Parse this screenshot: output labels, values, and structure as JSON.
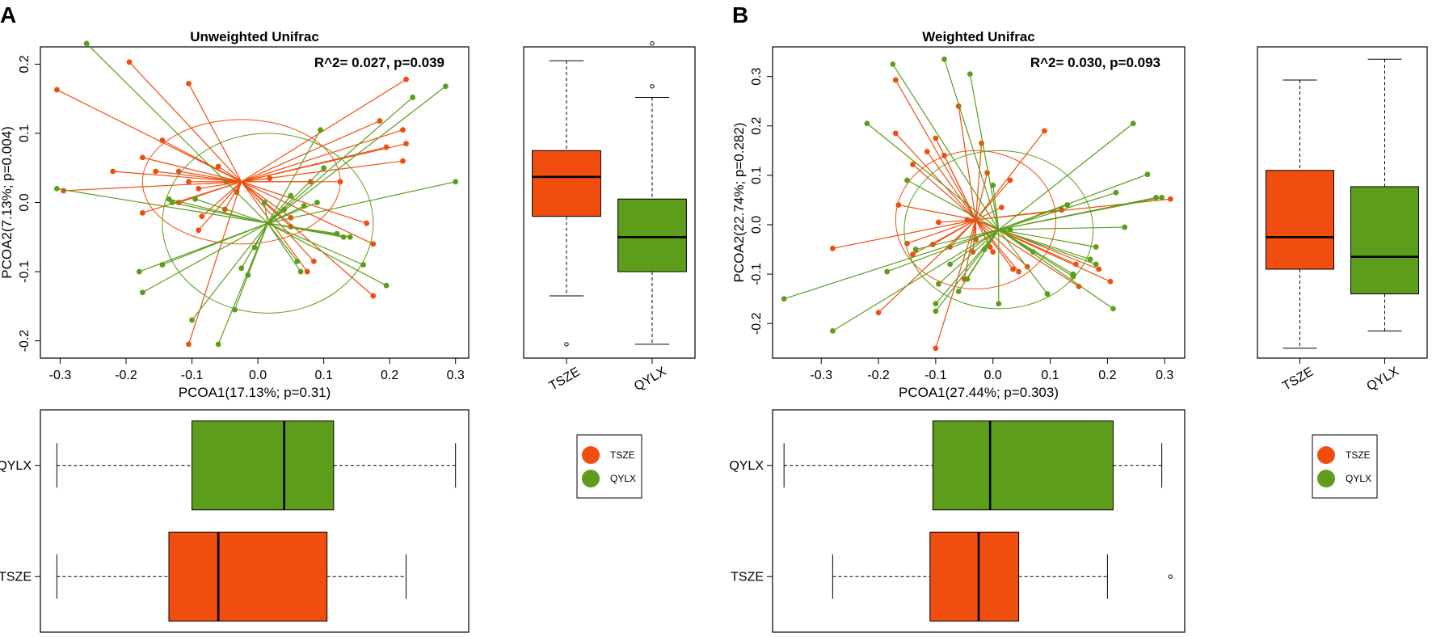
{
  "colors": {
    "TSZE": "#f04e0f",
    "QYLX": "#5c9e1b"
  },
  "panel_labels": [
    "A",
    "B"
  ],
  "chart_data": [
    {
      "type": "scatter",
      "panel": "A",
      "title": "Unweighted Unifrac",
      "stat": "R^2= 0.027, p=0.039",
      "xlabel": "PCOA1(17.13%; p=0.31)",
      "ylabel": "PCOA2(7.13%; p=0.004)",
      "xlim": [
        -0.33,
        0.32
      ],
      "ylim": [
        -0.225,
        0.225
      ],
      "xticks": [
        "-0.3",
        "-0.2",
        "-0.1",
        "0.0",
        "0.1",
        "0.2",
        "0.3"
      ],
      "yticks": [
        "-0.2",
        "-0.1",
        "0.0",
        "0.1",
        "0.2"
      ],
      "groups": [
        {
          "name": "TSZE",
          "centroid": [
            -0.025,
            0.03
          ],
          "ellipse": {
            "rx": 0.15,
            "ry": 0.09,
            "angle": 0
          },
          "points": [
            [
              -0.305,
              0.163
            ],
            [
              -0.295,
              0.017
            ],
            [
              -0.195,
              0.203
            ],
            [
              -0.22,
              0.045
            ],
            [
              -0.155,
              0.045
            ],
            [
              -0.175,
              0.065
            ],
            [
              -0.145,
              0.09
            ],
            [
              -0.105,
              0.172
            ],
            [
              -0.12,
              0.045
            ],
            [
              -0.105,
              0.03
            ],
            [
              -0.09,
              0.02
            ],
            [
              -0.085,
              -0.02
            ],
            [
              -0.09,
              -0.04
            ],
            [
              -0.12,
              0.0
            ],
            [
              -0.175,
              -0.015
            ],
            [
              -0.06,
              0.052
            ],
            [
              -0.048,
              0.03
            ],
            [
              -0.05,
              -0.01
            ],
            [
              -0.032,
              0.015
            ],
            [
              0.018,
              0.035
            ],
            [
              0.05,
              -0.022
            ],
            [
              0.05,
              -0.035
            ],
            [
              0.085,
              -0.085
            ],
            [
              0.075,
              -0.1
            ],
            [
              0.08,
              0.03
            ],
            [
              0.125,
              0.03
            ],
            [
              0.165,
              -0.03
            ],
            [
              0.175,
              -0.06
            ],
            [
              0.225,
              0.178
            ],
            [
              0.22,
              0.105
            ],
            [
              0.225,
              0.085
            ],
            [
              0.22,
              0.06
            ],
            [
              0.185,
              0.118
            ],
            [
              0.195,
              0.08
            ],
            [
              0.175,
              -0.135
            ],
            [
              -0.105,
              -0.205
            ]
          ]
        },
        {
          "name": "QYLX",
          "centroid": [
            0.015,
            -0.03
          ],
          "ellipse": {
            "rx": 0.16,
            "ry": 0.13,
            "angle": 0
          },
          "points": [
            [
              -0.26,
              0.23
            ],
            [
              -0.305,
              0.02
            ],
            [
              -0.175,
              -0.13
            ],
            [
              -0.18,
              -0.1
            ],
            [
              -0.145,
              -0.09
            ],
            [
              -0.135,
              0.005
            ],
            [
              -0.13,
              0.0
            ],
            [
              -0.1,
              -0.17
            ],
            [
              -0.06,
              -0.205
            ],
            [
              -0.035,
              -0.155
            ],
            [
              -0.025,
              -0.095
            ],
            [
              -0.015,
              -0.105
            ],
            [
              -0.005,
              -0.065
            ],
            [
              0.01,
              0.0
            ],
            [
              0.04,
              -0.01
            ],
            [
              0.06,
              -0.085
            ],
            [
              0.065,
              -0.1
            ],
            [
              0.07,
              -0.005
            ],
            [
              0.09,
              0.0
            ],
            [
              0.095,
              0.105
            ],
            [
              0.1,
              0.05
            ],
            [
              0.12,
              -0.045
            ],
            [
              0.13,
              -0.05
            ],
            [
              0.14,
              -0.05
            ],
            [
              0.16,
              -0.09
            ],
            [
              0.195,
              -0.12
            ],
            [
              0.235,
              0.152
            ],
            [
              0.285,
              0.168
            ],
            [
              0.3,
              0.03
            ],
            [
              0.05,
              0.01
            ],
            [
              -0.095,
              0.005
            ]
          ]
        }
      ]
    },
    {
      "type": "box",
      "panel": "A",
      "orientation": "vertical",
      "metric": "PCOA2",
      "categories": [
        "TSZE",
        "QYLX"
      ],
      "ylim": [
        -0.225,
        0.225
      ],
      "boxes": [
        {
          "name": "TSZE",
          "whisker_low": -0.135,
          "q1": -0.02,
          "median": 0.037,
          "q3": 0.075,
          "whisker_high": 0.205,
          "outliers": [
            -0.205
          ]
        },
        {
          "name": "QYLX",
          "whisker_low": -0.205,
          "q1": -0.1,
          "median": -0.05,
          "q3": 0.005,
          "whisker_high": 0.152,
          "outliers": [
            0.23,
            0.168
          ]
        }
      ]
    },
    {
      "type": "box",
      "panel": "A",
      "orientation": "horizontal",
      "metric": "PCOA1",
      "categories": [
        "QYLX",
        "TSZE"
      ],
      "xlim": [
        -0.33,
        0.32
      ],
      "boxes": [
        {
          "name": "QYLX",
          "whisker_low": -0.305,
          "q1": -0.1,
          "median": 0.04,
          "q3": 0.115,
          "whisker_high": 0.3,
          "outliers": []
        },
        {
          "name": "TSZE",
          "whisker_low": -0.305,
          "q1": -0.135,
          "median": -0.06,
          "q3": 0.105,
          "whisker_high": 0.225,
          "outliers": []
        }
      ]
    },
    {
      "type": "scatter",
      "panel": "B",
      "title": "Weighted Unifrac",
      "stat": "R^2= 0.030, p=0.093",
      "xlabel": "PCOA1(27.44%; p=0.303)",
      "ylabel": "PCOA2(22.74%; p=0.282)",
      "xlim": [
        -0.385,
        0.335
      ],
      "ylim": [
        -0.27,
        0.36
      ],
      "xticks": [
        "-0.3",
        "-0.2",
        "-0.1",
        "0.0",
        "0.1",
        "0.2",
        "0.3"
      ],
      "yticks": [
        "-0.2",
        "-0.1",
        "0.0",
        "0.1",
        "0.2",
        "0.3"
      ],
      "groups": [
        {
          "name": "TSZE",
          "centroid": [
            -0.03,
            0.01
          ],
          "ellipse": {
            "rx": 0.14,
            "ry": 0.14,
            "angle": 0
          },
          "points": [
            [
              -0.28,
              -0.048
            ],
            [
              -0.2,
              -0.178
            ],
            [
              -0.17,
              0.293
            ],
            [
              -0.17,
              0.185
            ],
            [
              -0.165,
              0.04
            ],
            [
              -0.15,
              -0.038
            ],
            [
              -0.14,
              0.122
            ],
            [
              -0.14,
              -0.06
            ],
            [
              -0.115,
              0.148
            ],
            [
              -0.105,
              -0.04
            ],
            [
              -0.095,
              0.005
            ],
            [
              -0.1,
              0.175
            ],
            [
              -0.085,
              0.14
            ],
            [
              -0.075,
              -0.045
            ],
            [
              -0.06,
              0.24
            ],
            [
              -0.045,
              0.01
            ],
            [
              -0.03,
              -0.03
            ],
            [
              -0.035,
              -0.055
            ],
            [
              -0.02,
              0.165
            ],
            [
              -0.01,
              0.105
            ],
            [
              -0.005,
              -0.045
            ],
            [
              0.0,
              -0.055
            ],
            [
              0.015,
              0.035
            ],
            [
              0.03,
              0.09
            ],
            [
              0.035,
              -0.09
            ],
            [
              0.045,
              -0.095
            ],
            [
              0.06,
              -0.085
            ],
            [
              0.09,
              0.19
            ],
            [
              0.12,
              0.03
            ],
            [
              0.145,
              -0.08
            ],
            [
              0.15,
              -0.125
            ],
            [
              0.185,
              -0.09
            ],
            [
              0.205,
              -0.115
            ],
            [
              0.31,
              0.052
            ],
            [
              -0.1,
              -0.25
            ],
            [
              -0.05,
              -0.11
            ]
          ]
        },
        {
          "name": "QYLX",
          "centroid": [
            0.01,
            -0.01
          ],
          "ellipse": {
            "rx": 0.165,
            "ry": 0.16,
            "angle": 0
          },
          "points": [
            [
              -0.365,
              -0.15
            ],
            [
              -0.28,
              -0.215
            ],
            [
              -0.22,
              0.205
            ],
            [
              -0.185,
              -0.095
            ],
            [
              -0.175,
              0.325
            ],
            [
              -0.15,
              0.09
            ],
            [
              -0.135,
              -0.05
            ],
            [
              -0.1,
              -0.16
            ],
            [
              -0.1,
              -0.175
            ],
            [
              -0.095,
              -0.12
            ],
            [
              -0.085,
              0.335
            ],
            [
              -0.075,
              -0.08
            ],
            [
              -0.06,
              -0.135
            ],
            [
              -0.045,
              -0.11
            ],
            [
              -0.04,
              0.305
            ],
            [
              -0.015,
              -0.05
            ],
            [
              0.0,
              0.08
            ],
            [
              0.01,
              -0.16
            ],
            [
              0.03,
              -0.01
            ],
            [
              0.07,
              -0.055
            ],
            [
              0.095,
              -0.14
            ],
            [
              0.13,
              0.04
            ],
            [
              0.14,
              -0.1
            ],
            [
              0.17,
              -0.07
            ],
            [
              0.18,
              -0.08
            ],
            [
              0.21,
              -0.17
            ],
            [
              0.215,
              0.065
            ],
            [
              0.23,
              -0.005
            ],
            [
              0.245,
              0.205
            ],
            [
              0.27,
              0.102
            ],
            [
              0.285,
              0.055
            ],
            [
              0.295,
              0.055
            ],
            [
              0.18,
              -0.045
            ],
            [
              0.14,
              -0.105
            ]
          ]
        }
      ]
    },
    {
      "type": "box",
      "panel": "B",
      "orientation": "vertical",
      "metric": "PCOA2",
      "categories": [
        "TSZE",
        "QYLX"
      ],
      "ylim": [
        -0.27,
        0.36
      ],
      "boxes": [
        {
          "name": "TSZE",
          "whisker_low": -0.25,
          "q1": -0.09,
          "median": -0.025,
          "q3": 0.11,
          "whisker_high": 0.293,
          "outliers": []
        },
        {
          "name": "QYLX",
          "whisker_low": -0.215,
          "q1": -0.14,
          "median": -0.065,
          "q3": 0.077,
          "whisker_high": 0.335,
          "outliers": []
        }
      ]
    },
    {
      "type": "box",
      "panel": "B",
      "orientation": "horizontal",
      "metric": "PCOA1",
      "categories": [
        "QYLX",
        "TSZE"
      ],
      "xlim": [
        -0.385,
        0.335
      ],
      "boxes": [
        {
          "name": "QYLX",
          "whisker_low": -0.365,
          "q1": -0.105,
          "median": -0.005,
          "q3": 0.21,
          "whisker_high": 0.295,
          "outliers": []
        },
        {
          "name": "TSZE",
          "whisker_low": -0.28,
          "q1": -0.11,
          "median": -0.025,
          "q3": 0.045,
          "whisker_high": 0.2,
          "outliers": [
            0.31
          ]
        }
      ]
    }
  ],
  "legends": [
    {
      "panel": "A",
      "items": [
        "TSZE",
        "QYLX"
      ]
    },
    {
      "panel": "B",
      "items": [
        "TSZE",
        "QYLX"
      ]
    }
  ]
}
